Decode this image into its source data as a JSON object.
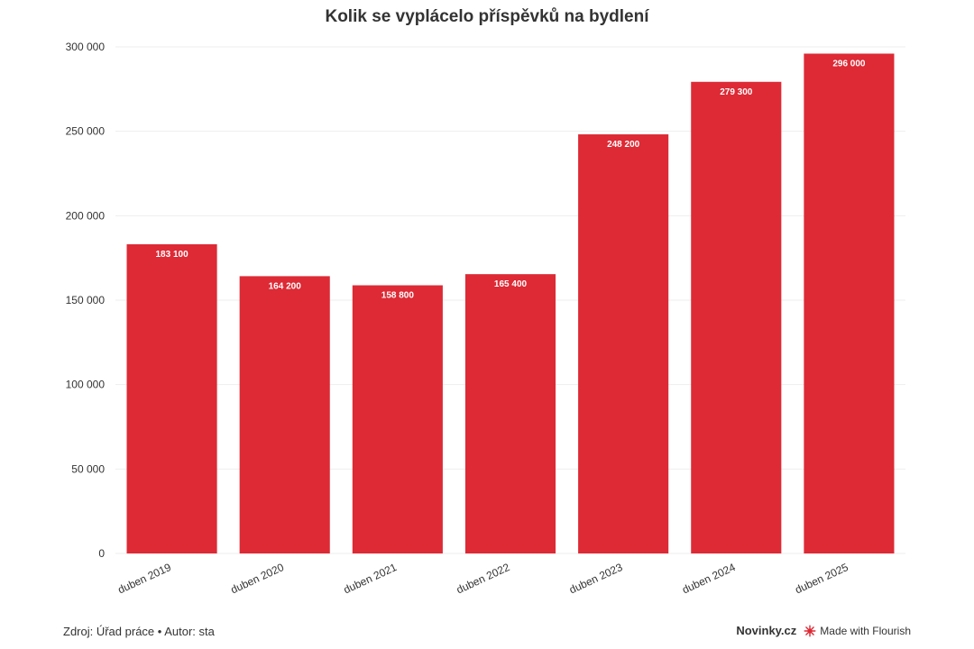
{
  "colors": {
    "bar": "#dd2a35",
    "grid": "#eeeeee",
    "text": "#333333"
  },
  "footer": {
    "source": "Zdroj: Úřad práce • Autor: sta",
    "brand": "Novinky.cz",
    "made_with": "Made with Flourish",
    "flourish_icon": "flourish-logo-icon"
  },
  "chart_data": {
    "type": "bar",
    "title": "Kolik se vyplácelo příspěvků na bydlení",
    "categories": [
      "duben 2019",
      "duben 2020",
      "duben 2021",
      "duben 2022",
      "duben 2023",
      "duben 2024",
      "duben 2025"
    ],
    "values": [
      183100,
      164200,
      158800,
      165400,
      248200,
      279300,
      296000
    ],
    "value_labels": [
      "183 100",
      "164 200",
      "158 800",
      "165 400",
      "248 200",
      "279 300",
      "296 000"
    ],
    "ylim": [
      0,
      300000
    ],
    "yticks": [
      0,
      50000,
      100000,
      150000,
      200000,
      250000,
      300000
    ],
    "ytick_labels": [
      "0",
      "50 000",
      "100 000",
      "150 000",
      "200 000",
      "250 000",
      "300 000"
    ],
    "grid": true,
    "xlabel": "",
    "ylabel": ""
  }
}
